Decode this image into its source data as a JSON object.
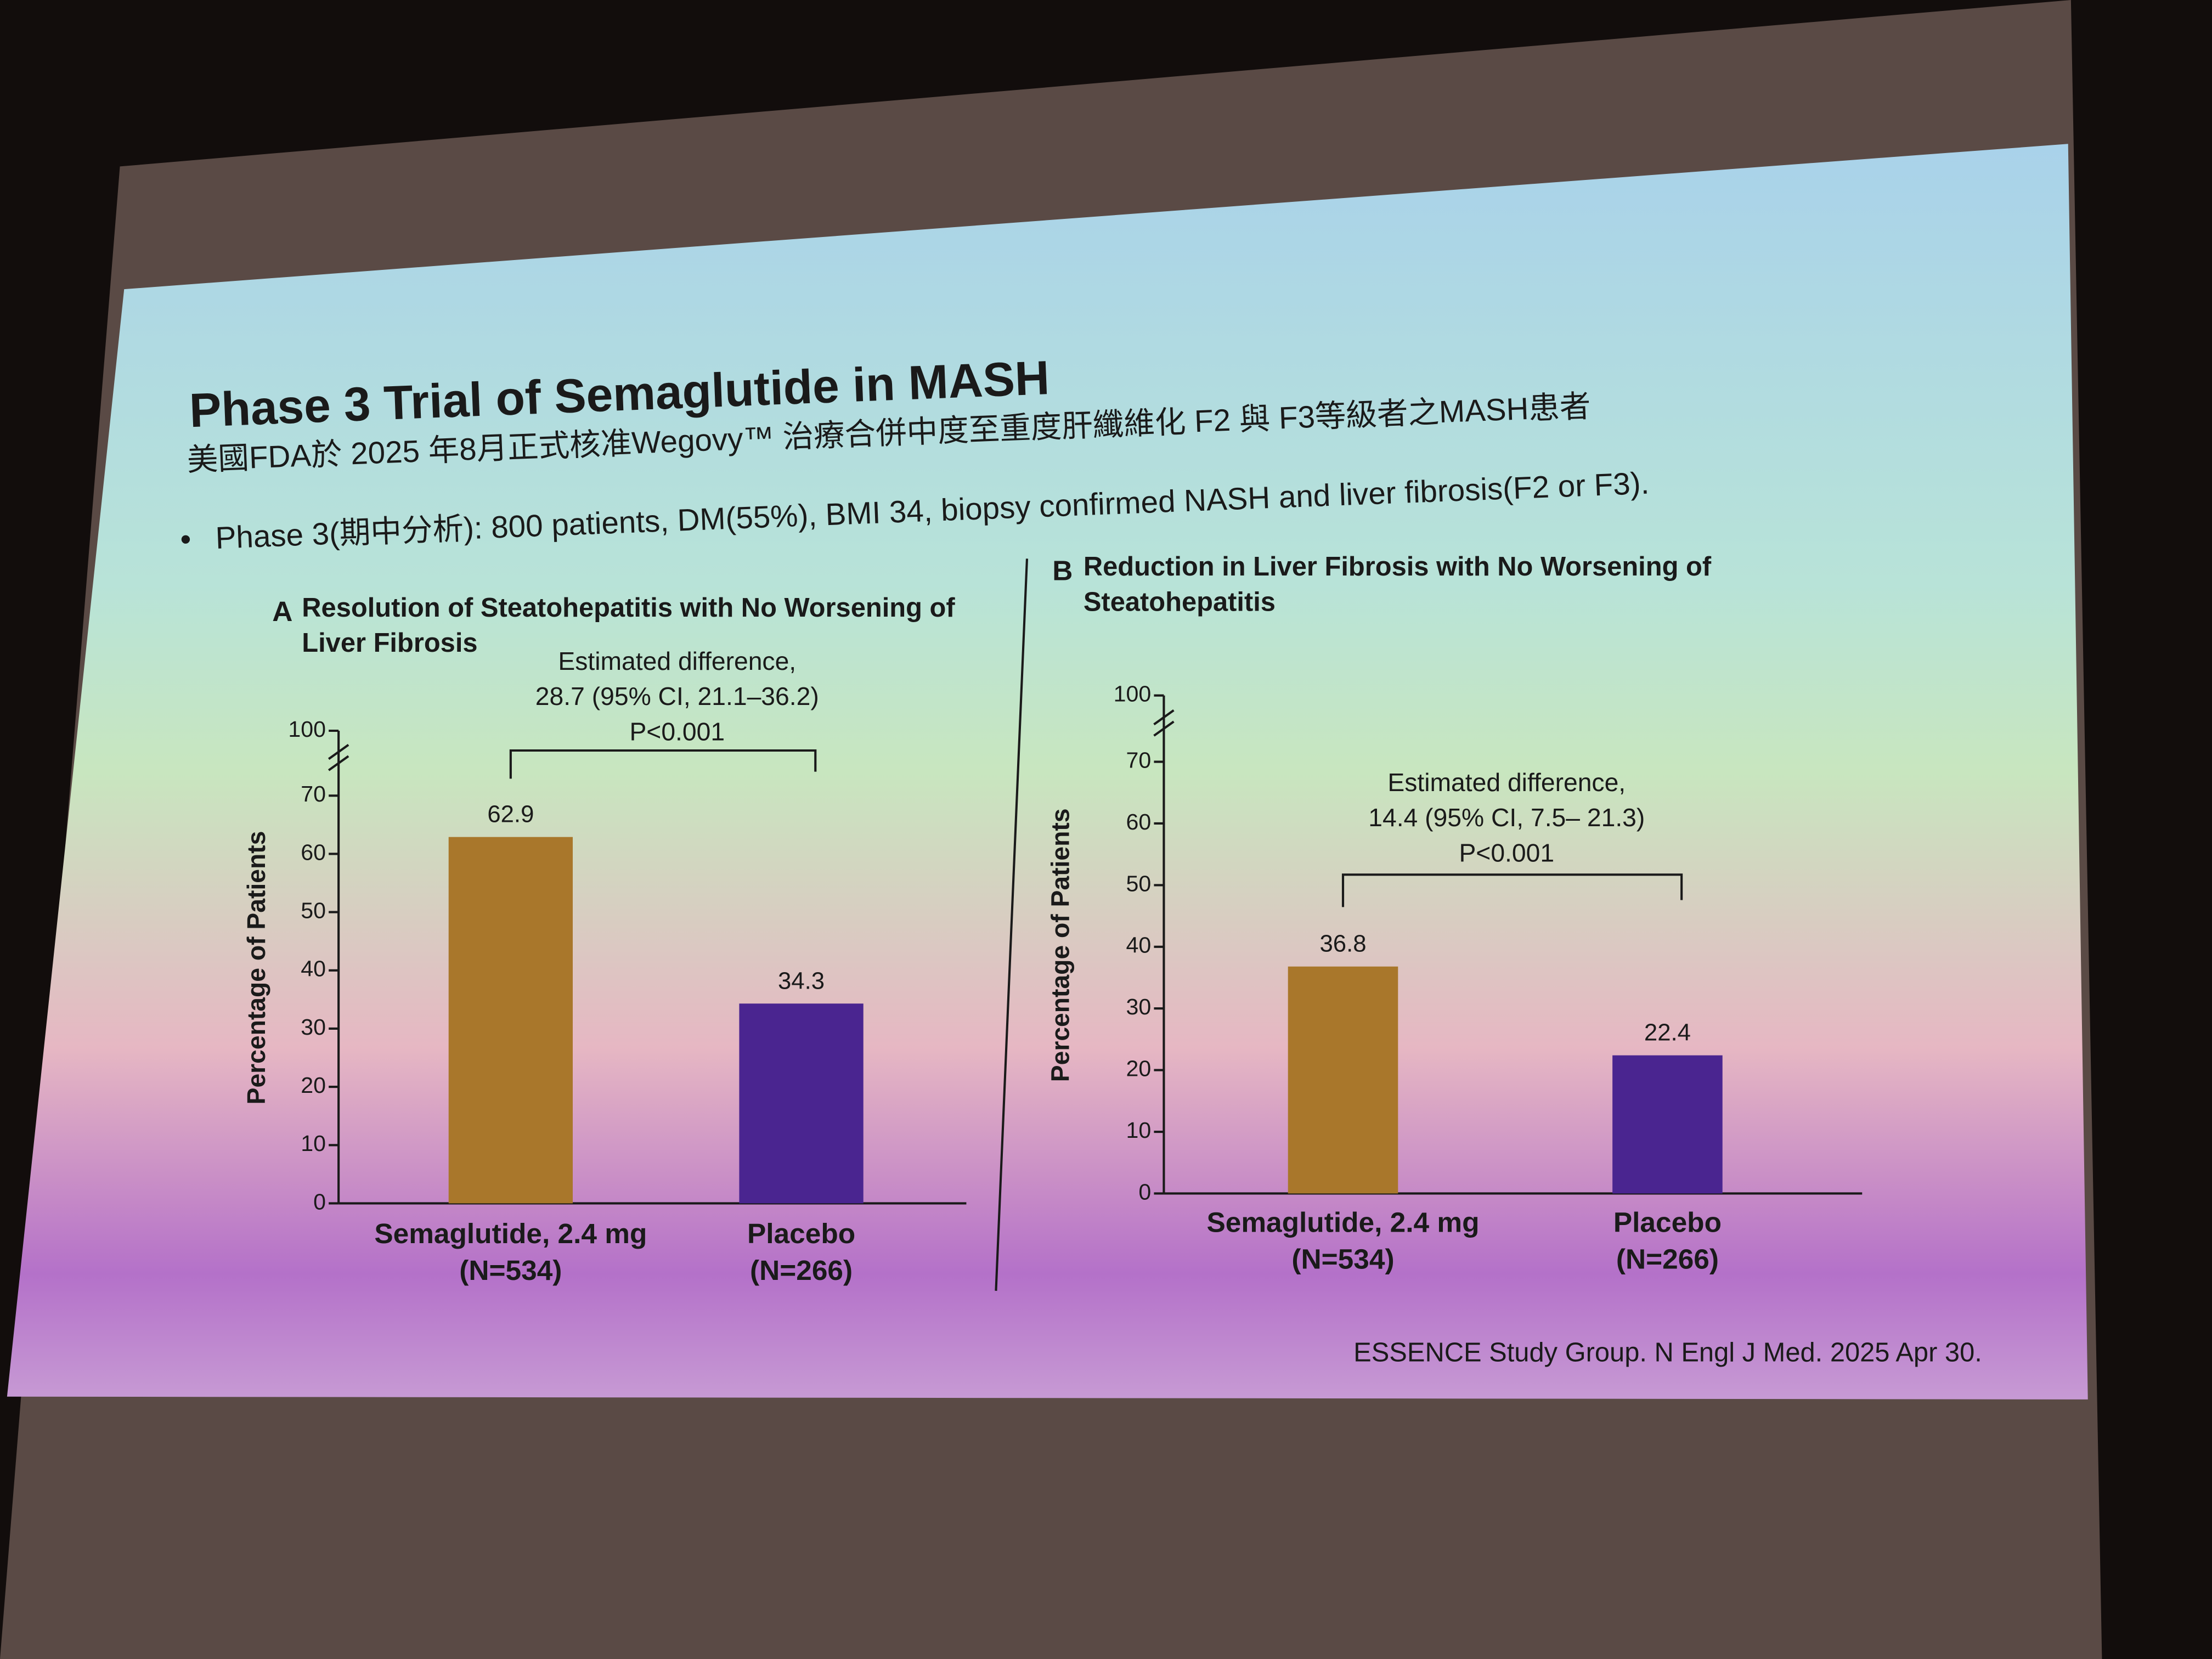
{
  "slide": {
    "title": "Phase 3 Trial of Semaglutide in MASH",
    "subtitle": "美國FDA於 2025 年8月正式核准Wegovy™ 治療合併中度至重度肝纖維化 F2 與 F3等級者之MASH患者",
    "bullet": "Phase 3(期中分析): 800 patients, DM(55%), BMI 34, biopsy confirmed NASH and liver fibrosis(F2 or F3).",
    "citation": "ESSENCE Study Group. N Engl J Med. 2025 Apr 30."
  },
  "chart_data": [
    {
      "type": "bar",
      "panel": "A",
      "title": [
        "Resolution of Steatohepatitis with No Worsening of",
        "Liver Fibrosis"
      ],
      "y_label": "Percentage of Patients",
      "categories": [
        "Semaglutide, 2.4 mg",
        "Placebo"
      ],
      "category_notes": [
        "(N=534)",
        "(N=266)"
      ],
      "values": [
        62.9,
        34.3
      ],
      "colors": [
        "#a9772b",
        "#4a2590"
      ],
      "ylim": [
        0,
        100
      ],
      "yticks": [
        0,
        10,
        20,
        30,
        40,
        50,
        60,
        70,
        100
      ],
      "axis_break": [
        70,
        100
      ],
      "annotation": [
        "Estimated difference,",
        "28.7 (95% CI, 21.1–36.2)",
        "P<0.001"
      ]
    },
    {
      "type": "bar",
      "panel": "B",
      "title": [
        "Reduction in Liver Fibrosis with No Worsening of",
        "Steatohepatitis"
      ],
      "y_label": "Percentage of Patients",
      "categories": [
        "Semaglutide, 2.4 mg",
        "Placebo"
      ],
      "category_notes": [
        "(N=534)",
        "(N=266)"
      ],
      "values": [
        36.8,
        22.4
      ],
      "colors": [
        "#a9772b",
        "#4a2590"
      ],
      "ylim": [
        0,
        100
      ],
      "yticks": [
        0,
        10,
        20,
        30,
        40,
        50,
        60,
        70,
        100
      ],
      "axis_break": [
        70,
        100
      ],
      "annotation": [
        "Estimated difference,",
        "14.4 (95% CI, 7.5– 21.3)",
        "P<0.001"
      ]
    }
  ]
}
